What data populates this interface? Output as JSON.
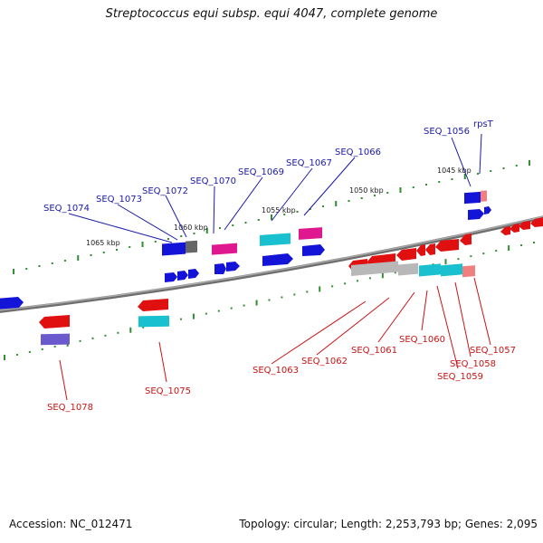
{
  "title": "Streptococcus equi subsp. equi 4047, complete genome",
  "accession": "Accession: NC_012471",
  "summary": "Topology: circular; Length: 2,253,793 bp; Genes: 2,095",
  "kbp_labels": [
    "1045 kbp",
    "1050 kbp",
    "1055 kbp",
    "1060 kbp",
    "1065 kbp"
  ],
  "genes_top": [
    "rpsT",
    "SEQ_1056",
    "SEQ_1066",
    "SEQ_1067",
    "SEQ_1069",
    "SEQ_1070",
    "SEQ_1072",
    "SEQ_1073",
    "SEQ_1074"
  ],
  "genes_bottom": [
    "SEQ_1057",
    "SEQ_1058",
    "SEQ_1059",
    "SEQ_1060",
    "SEQ_1061",
    "SEQ_1062",
    "SEQ_1063",
    "SEQ_1075",
    "SEQ_1078"
  ],
  "colors": {
    "forward_label": "#1a1aa8",
    "reverse_label": "#c81414",
    "backbone": "#777777",
    "tick": "#2f8f2f",
    "blue": "#1414d8",
    "red": "#e01010",
    "magenta": "#e01890",
    "cyan": "#18c0d0",
    "gray": "#b8b8b8",
    "purple": "#6a5acd",
    "pink": "#f08080"
  }
}
